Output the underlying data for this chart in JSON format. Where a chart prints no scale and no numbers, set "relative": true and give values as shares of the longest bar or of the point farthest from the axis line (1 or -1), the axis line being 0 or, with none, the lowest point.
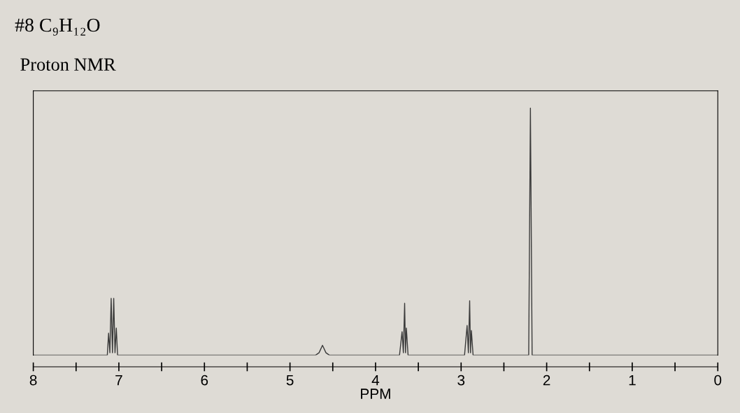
{
  "chart_data": {
    "type": "line",
    "title": "#8 C₉H₁₂O",
    "subtitle": "Proton NMR",
    "xlabel": "PPM",
    "relative": true,
    "grid": false,
    "marker": "none",
    "line_style": "solid",
    "xlim": [
      8,
      0
    ],
    "xticks": [
      8,
      {
        "value": 7.5,
        "label": null
      },
      7,
      {
        "value": 6.5,
        "label": null
      },
      6,
      {
        "value": 5.5,
        "label": null
      },
      5,
      {
        "value": 4.5,
        "label": null
      },
      4,
      {
        "value": 3.5,
        "label": null
      },
      3,
      {
        "value": 2.5,
        "label": null
      },
      2,
      {
        "value": 1.5,
        "label": null
      },
      1,
      {
        "value": 0.5,
        "label": null
      },
      0
    ],
    "x": [
      8,
      7.2,
      7.135,
      7.12,
      7.105,
      7.09,
      7.075,
      7.06,
      7.045,
      7.03,
      7.015,
      4.7,
      4.66,
      4.62,
      4.58,
      4.54,
      3.72,
      3.69,
      3.675,
      3.66,
      3.65,
      3.64,
      3.62,
      2.96,
      2.93,
      2.915,
      2.9,
      2.89,
      2.88,
      2.86,
      2.21,
      2.19,
      2.17,
      0
    ],
    "series": [
      {
        "color": "#3a3a3a",
        "values": [
          0,
          0,
          0,
          0.089,
          0.01,
          0.23,
          0.01,
          0.23,
          0.01,
          0.11,
          0,
          0,
          0.01,
          0.04,
          0.01,
          0,
          0,
          0.095,
          0.01,
          0.21,
          0.01,
          0.11,
          0,
          0,
          0.12,
          0.01,
          0.22,
          0.01,
          0.1,
          0,
          0,
          1,
          0,
          0
        ]
      }
    ]
  }
}
